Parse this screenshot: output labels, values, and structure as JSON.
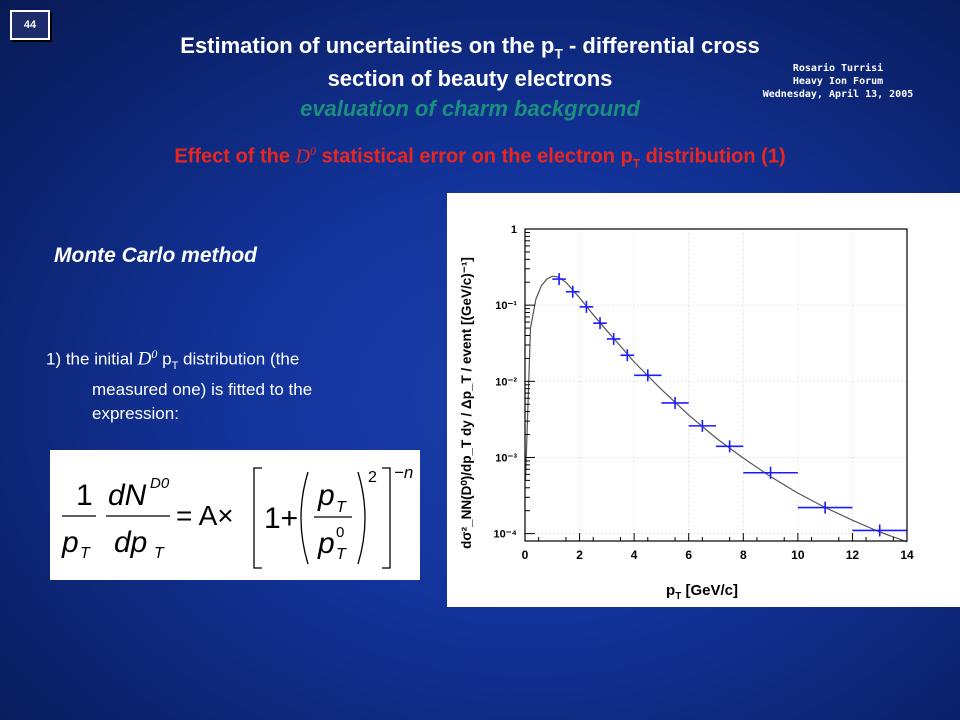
{
  "slide": {
    "number": "44"
  },
  "header": {
    "title_line1": "Estimation of uncertainties on the p",
    "title_line1_sub": "T",
    "title_line1_rest": " - differential cross",
    "title_line2": "section of beauty electrons",
    "title_line3": "evaluation of charm background",
    "author": "Rosario Turrisi",
    "event": "Heavy Ion Forum",
    "date": "Wednesday, April 13, 2005"
  },
  "subtitle": {
    "pre": "Effect of the ",
    "d0": "D",
    "d0_sup": "0",
    "mid": " statistical error on the electron p",
    "mid_sub": "T",
    "post": " distribution (1)"
  },
  "method": {
    "label": "Monte Carlo method"
  },
  "step1": {
    "pre": "1) the initial ",
    "d0": "D",
    "d0_sup": "0",
    "mid": " p",
    "mid_sub": "T",
    "post_line1": " distribution (the",
    "line2": "measured one) is fitted to the",
    "line3": "expression:"
  },
  "formula": {
    "one": "1",
    "dN": "dN",
    "D0": "D0",
    "pT": "p",
    "T": "T",
    "dpT": "dp",
    "eq": "= A×",
    "bracket_one": "1+",
    "p": "p",
    "zero": "0",
    "square": "2",
    "neg_n": "−n"
  },
  "chart_data": {
    "type": "scatter",
    "title": "",
    "xlabel": "p_T [GeV/c]",
    "ylabel": "dσ²_NN(D⁰)/dp_T dy / Δp_T / event   [(GeV/c)⁻¹]",
    "xlim": [
      0,
      14
    ],
    "ylim": [
      8e-05,
      1
    ],
    "yscale": "log",
    "x_ticks": [
      "0",
      "2",
      "4",
      "6",
      "8",
      "10",
      "12",
      "14"
    ],
    "y_ticks": [
      "10⁻⁴",
      "10⁻³",
      "10⁻²",
      "10⁻¹",
      "1"
    ],
    "grid": true,
    "marker_color": "#1a1aff",
    "fit_color": "#555555",
    "points": [
      {
        "x": 1.25,
        "y": 0.22,
        "xerr": 0.25
      },
      {
        "x": 1.75,
        "y": 0.15,
        "xerr": 0.25
      },
      {
        "x": 2.25,
        "y": 0.095,
        "xerr": 0.25
      },
      {
        "x": 2.75,
        "y": 0.058,
        "xerr": 0.25
      },
      {
        "x": 3.25,
        "y": 0.036,
        "xerr": 0.25
      },
      {
        "x": 3.75,
        "y": 0.022,
        "xerr": 0.25
      },
      {
        "x": 4.5,
        "y": 0.012,
        "xerr": 0.5
      },
      {
        "x": 5.5,
        "y": 0.0052,
        "xerr": 0.5
      },
      {
        "x": 6.5,
        "y": 0.0026,
        "xerr": 0.5
      },
      {
        "x": 7.5,
        "y": 0.0014,
        "xerr": 0.5
      },
      {
        "x": 9.0,
        "y": 0.00063,
        "xerr": 1.0
      },
      {
        "x": 11.0,
        "y": 0.00022,
        "xerr": 1.0
      },
      {
        "x": 13.0,
        "y": 0.00011,
        "xerr": 1.0
      }
    ],
    "fit_curve": [
      [
        0.02,
        0.0005
      ],
      [
        0.2,
        0.05
      ],
      [
        0.4,
        0.12
      ],
      [
        0.6,
        0.18
      ],
      [
        0.8,
        0.22
      ],
      [
        1.0,
        0.24
      ],
      [
        1.2,
        0.235
      ],
      [
        1.5,
        0.2
      ],
      [
        2.0,
        0.125
      ],
      [
        2.5,
        0.075
      ],
      [
        3.0,
        0.046
      ],
      [
        3.5,
        0.029
      ],
      [
        4.0,
        0.018
      ],
      [
        5.0,
        0.0078
      ],
      [
        6.0,
        0.0036
      ],
      [
        7.0,
        0.0018
      ],
      [
        8.0,
        0.00098
      ],
      [
        9.0,
        0.00056
      ],
      [
        10.0,
        0.00034
      ],
      [
        11.0,
        0.00022
      ],
      [
        12.0,
        0.00015
      ],
      [
        13.0,
        0.000105
      ],
      [
        14.0,
        7.8e-05
      ]
    ]
  }
}
